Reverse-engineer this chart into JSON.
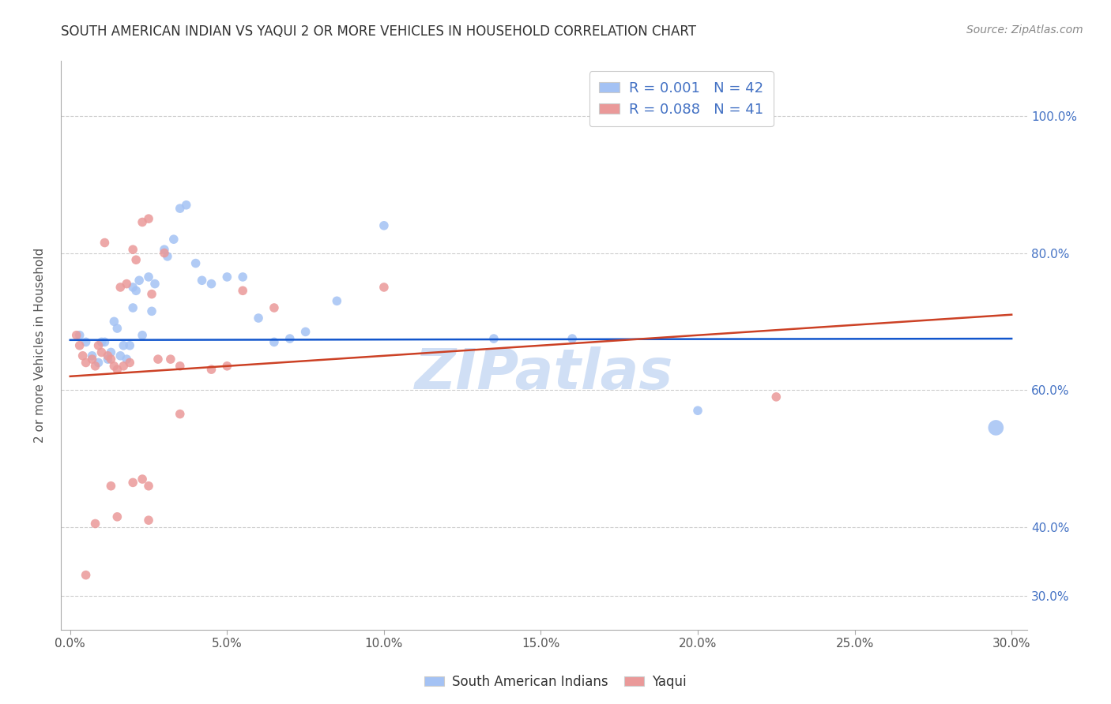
{
  "title": "SOUTH AMERICAN INDIAN VS YAQUI 2 OR MORE VEHICLES IN HOUSEHOLD CORRELATION CHART",
  "source": "Source: ZipAtlas.com",
  "xlabel_vals": [
    0.0,
    5.0,
    10.0,
    15.0,
    20.0,
    25.0,
    30.0
  ],
  "ylabel_vals": [
    30.0,
    40.0,
    60.0,
    80.0,
    100.0
  ],
  "xlim": [
    -0.3,
    30.5
  ],
  "ylim": [
    25.0,
    108.0
  ],
  "ylabel": "2 or more Vehicles in Household",
  "legend_r1": "0.001",
  "legend_n1": "42",
  "legend_r2": "0.088",
  "legend_n2": "41",
  "blue_color": "#a4c2f4",
  "pink_color": "#ea9999",
  "blue_line_color": "#1155cc",
  "pink_line_color": "#cc4125",
  "blue_dots": [
    [
      0.3,
      68.0
    ],
    [
      0.5,
      67.0
    ],
    [
      0.7,
      65.0
    ],
    [
      0.9,
      64.0
    ],
    [
      1.0,
      67.0
    ],
    [
      1.1,
      67.0
    ],
    [
      1.2,
      64.5
    ],
    [
      1.3,
      65.5
    ],
    [
      1.4,
      70.0
    ],
    [
      1.5,
      69.0
    ],
    [
      1.6,
      65.0
    ],
    [
      1.7,
      66.5
    ],
    [
      1.8,
      64.5
    ],
    [
      1.9,
      66.5
    ],
    [
      2.0,
      72.0
    ],
    [
      2.0,
      75.0
    ],
    [
      2.1,
      74.5
    ],
    [
      2.2,
      76.0
    ],
    [
      2.3,
      68.0
    ],
    [
      2.5,
      76.5
    ],
    [
      2.6,
      71.5
    ],
    [
      2.7,
      75.5
    ],
    [
      3.0,
      80.5
    ],
    [
      3.1,
      79.5
    ],
    [
      3.3,
      82.0
    ],
    [
      3.5,
      86.5
    ],
    [
      3.7,
      87.0
    ],
    [
      4.0,
      78.5
    ],
    [
      4.2,
      76.0
    ],
    [
      4.5,
      75.5
    ],
    [
      5.0,
      76.5
    ],
    [
      5.5,
      76.5
    ],
    [
      6.0,
      70.5
    ],
    [
      6.5,
      67.0
    ],
    [
      7.0,
      67.5
    ],
    [
      7.5,
      68.5
    ],
    [
      8.5,
      73.0
    ],
    [
      10.0,
      84.0
    ],
    [
      13.5,
      67.5
    ],
    [
      16.0,
      67.5
    ],
    [
      20.0,
      57.0
    ],
    [
      29.5,
      54.5
    ]
  ],
  "pink_dots": [
    [
      0.2,
      68.0
    ],
    [
      0.3,
      66.5
    ],
    [
      0.4,
      65.0
    ],
    [
      0.5,
      64.0
    ],
    [
      0.7,
      64.5
    ],
    [
      0.8,
      63.5
    ],
    [
      0.9,
      66.5
    ],
    [
      1.0,
      65.5
    ],
    [
      1.1,
      81.5
    ],
    [
      1.2,
      65.0
    ],
    [
      1.3,
      64.5
    ],
    [
      1.4,
      63.5
    ],
    [
      1.5,
      63.0
    ],
    [
      1.6,
      75.0
    ],
    [
      1.7,
      63.5
    ],
    [
      1.8,
      75.5
    ],
    [
      1.9,
      64.0
    ],
    [
      2.0,
      80.5
    ],
    [
      2.1,
      79.0
    ],
    [
      2.3,
      84.5
    ],
    [
      2.5,
      85.0
    ],
    [
      2.6,
      74.0
    ],
    [
      2.8,
      64.5
    ],
    [
      3.0,
      80.0
    ],
    [
      3.2,
      64.5
    ],
    [
      3.5,
      63.5
    ],
    [
      4.5,
      63.0
    ],
    [
      5.0,
      63.5
    ],
    [
      5.5,
      74.5
    ],
    [
      6.5,
      72.0
    ],
    [
      10.0,
      75.0
    ],
    [
      1.3,
      46.0
    ],
    [
      2.0,
      46.5
    ],
    [
      2.3,
      47.0
    ],
    [
      2.5,
      46.0
    ],
    [
      1.5,
      41.5
    ],
    [
      2.5,
      41.0
    ],
    [
      0.8,
      40.5
    ],
    [
      3.5,
      56.5
    ],
    [
      22.5,
      59.0
    ],
    [
      0.5,
      33.0
    ]
  ],
  "blue_dot_sizes": [
    70,
    70,
    70,
    70,
    70,
    70,
    70,
    70,
    70,
    70,
    70,
    70,
    70,
    70,
    70,
    70,
    70,
    70,
    70,
    70,
    70,
    70,
    70,
    70,
    70,
    70,
    70,
    70,
    70,
    70,
    70,
    70,
    70,
    70,
    70,
    70,
    70,
    70,
    70,
    70,
    70,
    200
  ],
  "pink_dot_sizes": [
    70,
    70,
    70,
    70,
    70,
    70,
    70,
    70,
    70,
    70,
    70,
    70,
    70,
    70,
    70,
    70,
    70,
    70,
    70,
    70,
    70,
    70,
    70,
    70,
    70,
    70,
    70,
    70,
    70,
    70,
    70,
    70,
    70,
    70,
    70,
    70,
    70,
    70,
    70,
    70,
    70
  ],
  "blue_trendline_x": [
    0.0,
    30.0
  ],
  "blue_trendline_y": [
    67.3,
    67.5
  ],
  "pink_trendline_x": [
    0.0,
    30.0
  ],
  "pink_trendline_y": [
    62.0,
    71.0
  ],
  "grid_color": "#cccccc",
  "background_color": "#ffffff",
  "legend_color_blue": "#a4c2f4",
  "legend_color_pink": "#ea9999",
  "watermark_text": "ZIPatlas",
  "watermark_color": "#d0dff5"
}
